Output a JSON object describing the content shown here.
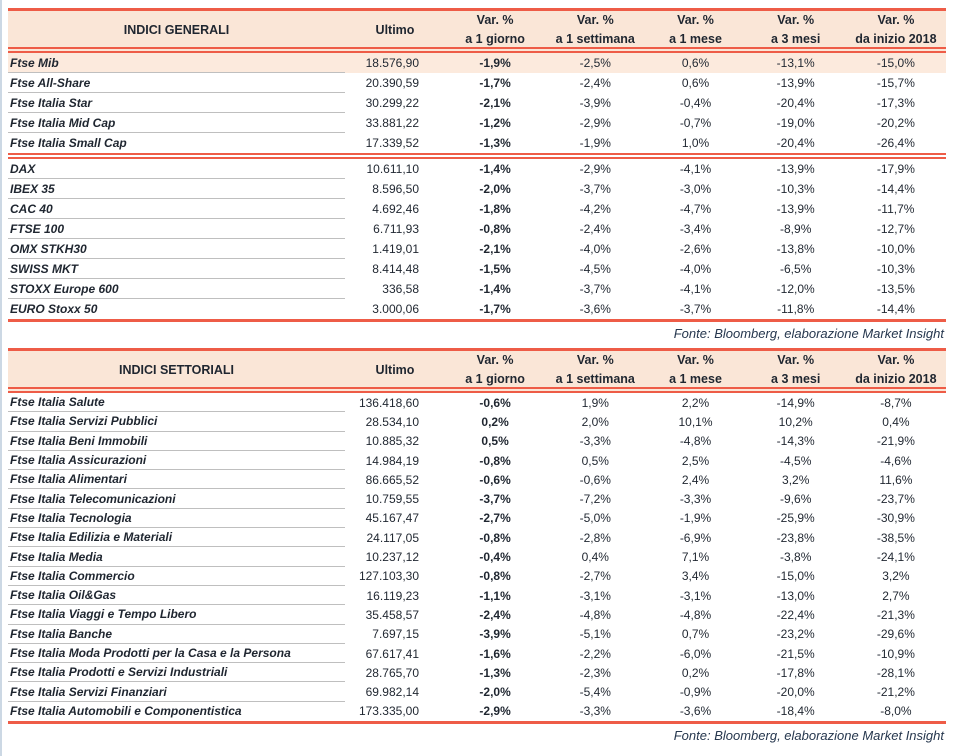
{
  "colors": {
    "accent_red": "#ee5c47",
    "header_bg": "#fae6d7",
    "highlight_row_bg": "#fceadd",
    "row_separator": "#bfbfbf",
    "text": "#1f2630",
    "fonte_text": "#26374e",
    "page_edge": "#ccd8e4"
  },
  "tables": [
    {
      "title": "INDICI GENERALI",
      "col_headers": [
        {
          "line1": "Ultimo",
          "line2": ""
        },
        {
          "line1": "Var. %",
          "line2": "a 1 giorno"
        },
        {
          "line1": "Var. %",
          "line2": "a 1 settimana"
        },
        {
          "line1": "Var. %",
          "line2": "a 1 mese"
        },
        {
          "line1": "Var. %",
          "line2": "a 3 mesi"
        },
        {
          "line1": "Var. %",
          "line2": "da inizio 2018"
        }
      ],
      "groups": [
        {
          "rows": [
            {
              "name": "Ftse Mib",
              "highlight": true,
              "values": [
                "18.576,90",
                "-1,9%",
                "-2,5%",
                "0,6%",
                "-13,1%",
                "-15,0%"
              ]
            },
            {
              "name": "Ftse All-Share",
              "values": [
                "20.390,59",
                "-1,7%",
                "-2,4%",
                "0,6%",
                "-13,9%",
                "-15,7%"
              ]
            },
            {
              "name": "Ftse Italia Star",
              "values": [
                "30.299,22",
                "-2,1%",
                "-3,9%",
                "-0,4%",
                "-20,4%",
                "-17,3%"
              ]
            },
            {
              "name": "Ftse Italia Mid Cap",
              "values": [
                "33.881,22",
                "-1,2%",
                "-2,9%",
                "-0,7%",
                "-19,0%",
                "-20,2%"
              ]
            },
            {
              "name": "Ftse Italia Small Cap",
              "values": [
                "17.339,52",
                "-1,3%",
                "-1,9%",
                "1,0%",
                "-20,4%",
                "-26,4%"
              ]
            }
          ]
        },
        {
          "rows": [
            {
              "name": "DAX",
              "values": [
                "10.611,10",
                "-1,4%",
                "-2,9%",
                "-4,1%",
                "-13,9%",
                "-17,9%"
              ]
            },
            {
              "name": "IBEX 35",
              "values": [
                "8.596,50",
                "-2,0%",
                "-3,7%",
                "-3,0%",
                "-10,3%",
                "-14,4%"
              ]
            },
            {
              "name": "CAC 40",
              "values": [
                "4.692,46",
                "-1,8%",
                "-4,2%",
                "-4,7%",
                "-13,9%",
                "-11,7%"
              ]
            },
            {
              "name": "FTSE 100",
              "values": [
                "6.711,93",
                "-0,8%",
                "-2,4%",
                "-3,4%",
                "-8,9%",
                "-12,7%"
              ]
            },
            {
              "name": "OMX STKH30",
              "values": [
                "1.419,01",
                "-2,1%",
                "-4,0%",
                "-2,6%",
                "-13,8%",
                "-10,0%"
              ]
            },
            {
              "name": "SWISS MKT",
              "values": [
                "8.414,48",
                "-1,5%",
                "-4,5%",
                "-4,0%",
                "-6,5%",
                "-10,3%"
              ]
            },
            {
              "name": "STOXX Europe 600",
              "values": [
                "336,58",
                "-1,4%",
                "-3,7%",
                "-4,1%",
                "-12,0%",
                "-13,5%"
              ]
            },
            {
              "name": "EURO Stoxx 50",
              "values": [
                "3.000,06",
                "-1,7%",
                "-3,6%",
                "-3,7%",
                "-11,8%",
                "-14,4%"
              ]
            }
          ]
        }
      ],
      "fonte": "Fonte: Bloomberg, elaborazione Market Insight"
    },
    {
      "title": "INDICI SETTORIALI",
      "col_headers": [
        {
          "line1": "Ultimo",
          "line2": ""
        },
        {
          "line1": "Var. %",
          "line2": "a 1 giorno"
        },
        {
          "line1": "Var. %",
          "line2": "a 1 settimana"
        },
        {
          "line1": "Var. %",
          "line2": "a 1 mese"
        },
        {
          "line1": "Var. %",
          "line2": "a 3 mesi"
        },
        {
          "line1": "Var. %",
          "line2": "da inizio 2018"
        }
      ],
      "groups": [
        {
          "rows": [
            {
              "name": "Ftse Italia Salute",
              "values": [
                "136.418,60",
                "-0,6%",
                "1,9%",
                "2,2%",
                "-14,9%",
                "-8,7%"
              ]
            },
            {
              "name": "Ftse Italia Servizi Pubblici",
              "values": [
                "28.534,10",
                "0,2%",
                "2,0%",
                "10,1%",
                "10,2%",
                "0,4%"
              ]
            },
            {
              "name": "Ftse Italia Beni Immobili",
              "values": [
                "10.885,32",
                "0,5%",
                "-3,3%",
                "-4,8%",
                "-14,3%",
                "-21,9%"
              ]
            },
            {
              "name": "Ftse Italia Assicurazioni",
              "values": [
                "14.984,19",
                "-0,8%",
                "0,5%",
                "2,5%",
                "-4,5%",
                "-4,6%"
              ]
            },
            {
              "name": "Ftse Italia Alimentari",
              "values": [
                "86.665,52",
                "-0,6%",
                "-0,6%",
                "2,4%",
                "3,2%",
                "11,6%"
              ]
            },
            {
              "name": "Ftse Italia Telecomunicazioni",
              "values": [
                "10.759,55",
                "-3,7%",
                "-7,2%",
                "-3,3%",
                "-9,6%",
                "-23,7%"
              ]
            },
            {
              "name": "Ftse Italia Tecnologia",
              "values": [
                "45.167,47",
                "-2,7%",
                "-5,0%",
                "-1,9%",
                "-25,9%",
                "-30,9%"
              ]
            },
            {
              "name": "Ftse Italia Edilizia e Materiali",
              "values": [
                "24.117,05",
                "-0,8%",
                "-2,8%",
                "-6,9%",
                "-23,8%",
                "-38,5%"
              ]
            },
            {
              "name": "Ftse Italia Media",
              "values": [
                "10.237,12",
                "-0,4%",
                "0,4%",
                "7,1%",
                "-3,8%",
                "-24,1%"
              ]
            },
            {
              "name": "Ftse Italia Commercio",
              "values": [
                "127.103,30",
                "-0,8%",
                "-2,7%",
                "3,4%",
                "-15,0%",
                "3,2%"
              ]
            },
            {
              "name": "Ftse Italia Oil&Gas",
              "values": [
                "16.119,23",
                "-1,1%",
                "-3,1%",
                "-3,1%",
                "-13,0%",
                "2,7%"
              ]
            },
            {
              "name": "Ftse Italia Viaggi e Tempo Libero",
              "values": [
                "35.458,57",
                "-2,4%",
                "-4,8%",
                "-4,8%",
                "-22,4%",
                "-21,3%"
              ]
            },
            {
              "name": "Ftse Italia Banche",
              "values": [
                "7.697,15",
                "-3,9%",
                "-5,1%",
                "0,7%",
                "-23,2%",
                "-29,6%"
              ]
            },
            {
              "name": "Ftse Italia Moda Prodotti per la Casa e la Persona",
              "values": [
                "67.617,41",
                "-1,6%",
                "-2,2%",
                "-6,0%",
                "-21,5%",
                "-10,9%"
              ]
            },
            {
              "name": "Ftse Italia Prodotti e Servizi Industriali",
              "values": [
                "28.765,70",
                "-1,3%",
                "-2,3%",
                "0,2%",
                "-17,8%",
                "-28,1%"
              ]
            },
            {
              "name": "Ftse Italia Servizi Finanziari",
              "values": [
                "69.982,14",
                "-2,0%",
                "-5,4%",
                "-0,9%",
                "-20,0%",
                "-21,2%"
              ]
            },
            {
              "name": "Ftse Italia Automobili e Componentistica",
              "values": [
                "173.335,00",
                "-2,9%",
                "-3,3%",
                "-3,6%",
                "-18,4%",
                "-8,0%"
              ]
            }
          ]
        }
      ],
      "fonte": "Fonte: Bloomberg, elaborazione Market Insight"
    }
  ]
}
